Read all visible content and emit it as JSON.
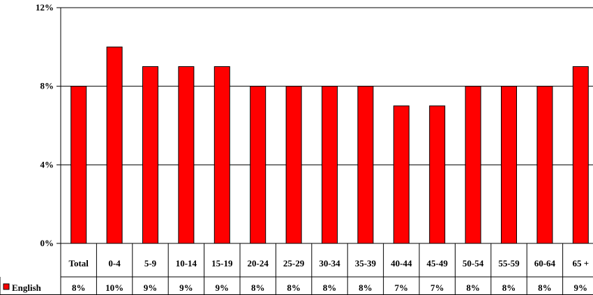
{
  "chart_data": {
    "type": "bar",
    "categories": [
      "Total",
      "0-4",
      "5-9",
      "10-14",
      "15-19",
      "20-24",
      "25-29",
      "30-34",
      "35-39",
      "40-44",
      "45-49",
      "50-54",
      "55-59",
      "60-64",
      "65 +"
    ],
    "series": [
      {
        "name": "English",
        "color": "#ff0000",
        "values": [
          8,
          10,
          9,
          9,
          9,
          8,
          8,
          8,
          8,
          7,
          7,
          8,
          8,
          8,
          9
        ],
        "value_labels": [
          "8%",
          "10%",
          "9%",
          "9%",
          "9%",
          "8%",
          "8%",
          "8%",
          "8%",
          "7%",
          "7%",
          "8%",
          "8%",
          "8%",
          "9%"
        ]
      }
    ],
    "yticks": [
      "0%",
      "4%",
      "8%",
      "12%"
    ],
    "ytick_values": [
      0,
      4,
      8,
      12
    ],
    "ylim": [
      0,
      12
    ],
    "grid": true,
    "legend": "bottom-left",
    "data_table": true
  }
}
